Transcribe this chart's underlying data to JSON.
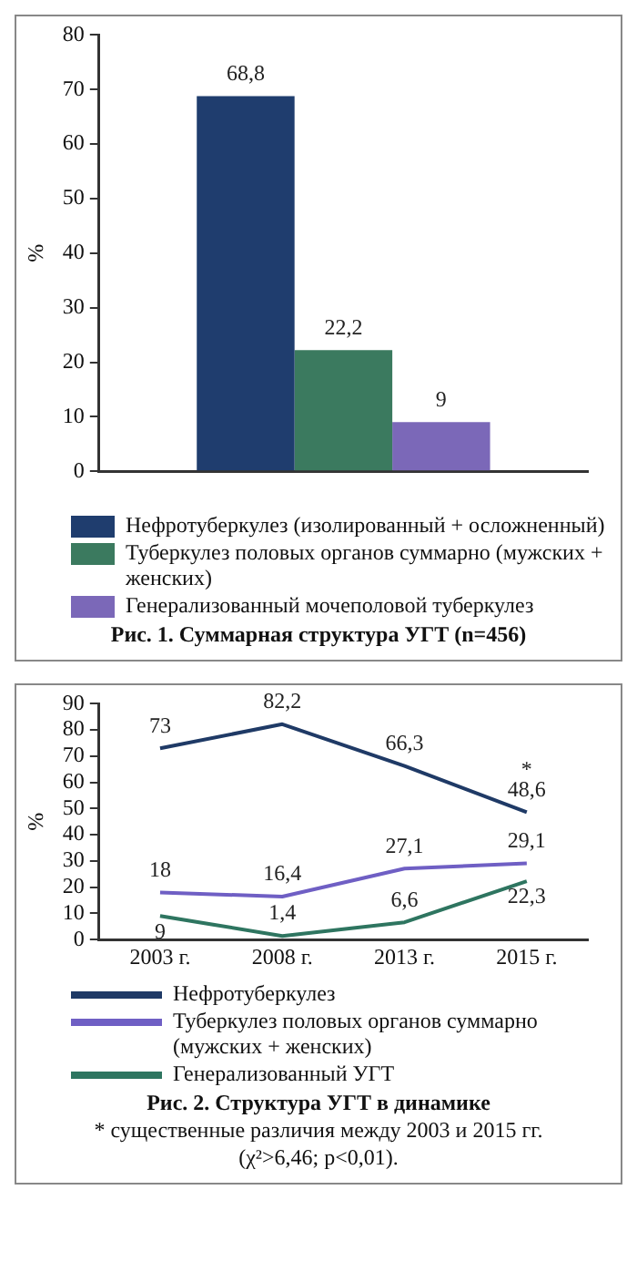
{
  "chart_data": [
    {
      "type": "bar",
      "title": "Рис. 1. Суммарная структура УГТ (n=456)",
      "ylabel": "%",
      "categories": [
        null
      ],
      "series": [
        {
          "name": "Нефротуберкулез (изолированный + осложненный)",
          "color": "#1f3d6e",
          "values": [
            68.8
          ],
          "value_labels": [
            "68,8"
          ]
        },
        {
          "name": "Туберкулез половых органов суммарно (мужских + женских)",
          "color": "#3b7a5f",
          "values": [
            22.2
          ],
          "value_labels": [
            "22,2"
          ]
        },
        {
          "name": "Генерализованный мочеполовой туберкулез",
          "color": "#7b68b8",
          "values": [
            9
          ],
          "value_labels": [
            "9"
          ]
        }
      ],
      "ylim": [
        0,
        80
      ],
      "yticks": [
        0,
        10,
        20,
        30,
        40,
        50,
        60,
        70,
        80
      ],
      "grid": false,
      "legend": "bottom"
    },
    {
      "type": "line",
      "title": "Рис. 2. Структура УГТ в динамике",
      "ylabel": "%",
      "categories": [
        "2003 г.",
        "2008 г.",
        "2013 г.",
        "2015 г."
      ],
      "series": [
        {
          "name": "Нефротуберкулез",
          "color": "#1f3a66",
          "values": [
            73,
            82.2,
            66.3,
            48.6
          ],
          "value_labels": [
            "73",
            "82,2",
            "66,3",
            "48,6"
          ]
        },
        {
          "name": "Туберкулез половых органов суммарно (мужских + женских)",
          "color": "#6f5fc4",
          "values": [
            18,
            16.4,
            27.1,
            29.1
          ],
          "value_labels": [
            "18",
            "16,4",
            "27,1",
            "29,1"
          ]
        },
        {
          "name": "Генерализованный УГТ",
          "color": "#2e7560",
          "values": [
            9,
            1.4,
            6.6,
            22.3
          ],
          "value_labels": [
            "9",
            "1,4",
            "6,6",
            "22,3"
          ]
        }
      ],
      "ylim": [
        0,
        90
      ],
      "yticks": [
        0,
        10,
        20,
        30,
        40,
        50,
        60,
        70,
        80,
        90
      ],
      "grid": false,
      "legend": "bottom",
      "marker": "none",
      "line_style": "solid",
      "annotations": [
        {
          "text": "*",
          "x": "2015 г.",
          "y": 48.6
        },
        "* существенные различия между 2003 и 2015 гг. (χ²>6,46; p<0,01)."
      ]
    }
  ]
}
